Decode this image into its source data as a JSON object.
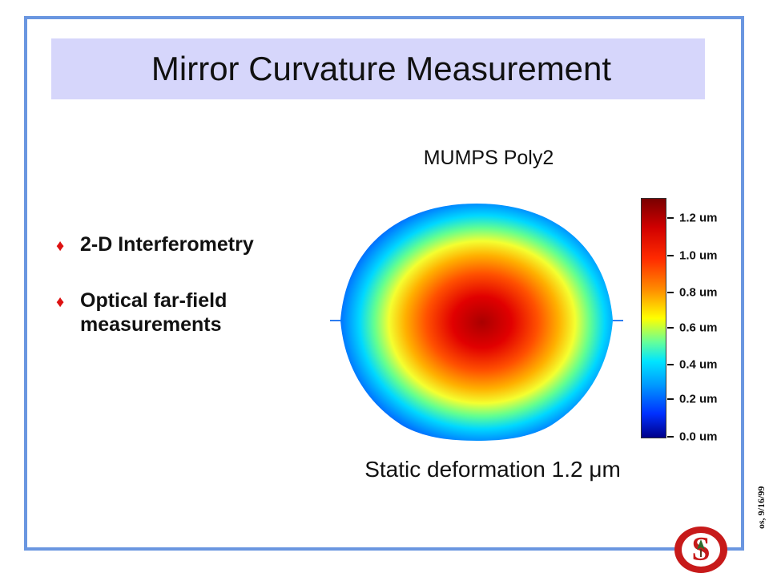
{
  "slide": {
    "title": "Mirror Curvature Measurement",
    "bullets": [
      {
        "text": "2-D Interferometry"
      },
      {
        "text": "Optical far-field measurements"
      }
    ],
    "figure_title": "MUMPS Poly2",
    "figure_caption": "Static deformation 1.2 μm",
    "colorbar_labels": [
      "1.2 um",
      "1.0 um",
      "0.8 um",
      "0.6 um",
      "0.4 um",
      "0.2 um",
      "0.0 um"
    ],
    "vertical_note": "os, 9/16/99",
    "logo_letter": "S"
  },
  "colors": {
    "frame_border": "#6a96e0",
    "title_background": "#d6d6fb",
    "bullet_marker": "#d11111"
  },
  "icons": {
    "bullet": "diamond-icon",
    "logo": "stanford-logo-icon"
  }
}
